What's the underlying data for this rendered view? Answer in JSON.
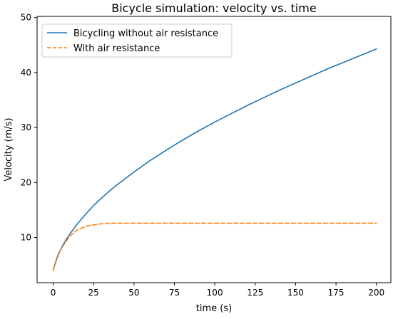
{
  "chart_data": {
    "type": "line",
    "title": "Bicycle simulation: velocity vs. time",
    "xlabel": "time (s)",
    "ylabel": "Velocity (m/s)",
    "xlim": [
      -9.95,
      208.95
    ],
    "ylim": [
      1.78,
      50.22
    ],
    "xticks": [
      0,
      25,
      50,
      75,
      100,
      125,
      150,
      175,
      200
    ],
    "yticks": [
      10,
      20,
      30,
      40,
      50
    ],
    "xtick_labels": [
      "0",
      "25",
      "50",
      "75",
      "100",
      "125",
      "150",
      "175",
      "200"
    ],
    "ytick_labels": [
      "10",
      "20",
      "30",
      "40",
      "50"
    ],
    "grid": false,
    "legend_position": "top-left",
    "x": [
      0,
      1,
      2,
      3,
      4,
      5,
      6,
      8,
      10,
      12,
      15,
      20,
      25,
      30,
      35,
      40,
      50,
      60,
      70,
      80,
      90,
      100,
      110,
      120,
      130,
      140,
      150,
      160,
      170,
      180,
      190,
      200
    ],
    "series": [
      {
        "name": "Bicycling without air resistance",
        "color": "#1f77b4",
        "style": "solid",
        "values": [
          4.0,
          5.1,
          6.0,
          6.8,
          7.4,
          8.0,
          8.6,
          9.6,
          10.5,
          11.3,
          12.5,
          14.2,
          15.8,
          17.2,
          18.5,
          19.7,
          21.9,
          24.0,
          25.9,
          27.7,
          29.4,
          31.0,
          32.5,
          34.0,
          35.4,
          36.8,
          38.1,
          39.4,
          40.7,
          41.9,
          43.1,
          44.3
        ]
      },
      {
        "name": "With air resistance",
        "color": "#ff7f0e",
        "style": "dashed",
        "values": [
          4.0,
          5.0,
          5.8,
          6.6,
          7.3,
          7.9,
          8.4,
          9.3,
          10.1,
          10.7,
          11.4,
          12.0,
          12.3,
          12.5,
          12.6,
          12.6,
          12.6,
          12.6,
          12.6,
          12.6,
          12.6,
          12.6,
          12.6,
          12.6,
          12.6,
          12.6,
          12.6,
          12.6,
          12.6,
          12.6,
          12.6,
          12.6
        ]
      }
    ]
  }
}
